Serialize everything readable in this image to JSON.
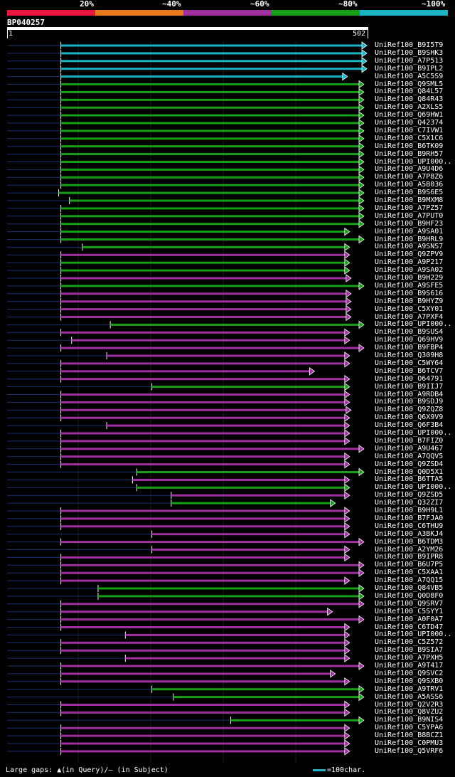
{
  "legend": {
    "labels": [
      "20%",
      "~40%",
      "~60%",
      "~80%",
      "~100%"
    ],
    "colors": [
      "#e8173c",
      "#e87a1c",
      "#a02fa0",
      "#16a016",
      "#19b5c4"
    ]
  },
  "query": {
    "id": "BP040257",
    "start_label": "1",
    "end_label": "502",
    "length": 502
  },
  "colors": {
    "cyan": "#19b5c4",
    "green": "#16a016",
    "purple": "#a02fa0",
    "gap": "#1a2f70",
    "background": "#000000"
  },
  "hits": [
    {
      "acc": "UniRef100_B9I5T9",
      "color": "cyan",
      "start": 75,
      "end": 502
    },
    {
      "acc": "UniRef100_B9SHK3",
      "color": "cyan",
      "start": 75,
      "end": 502
    },
    {
      "acc": "UniRef100_A7P513",
      "color": "cyan",
      "start": 75,
      "end": 502
    },
    {
      "acc": "UniRef100_B9IPL2",
      "color": "cyan",
      "start": 75,
      "end": 502
    },
    {
      "acc": "UniRef100_A5C5S9",
      "color": "cyan",
      "start": 75,
      "end": 475
    },
    {
      "acc": "UniRef100_Q9SML5",
      "color": "green",
      "start": 75,
      "end": 498
    },
    {
      "acc": "UniRef100_Q84L57",
      "color": "green",
      "start": 75,
      "end": 498
    },
    {
      "acc": "UniRef100_Q84R43",
      "color": "green",
      "start": 75,
      "end": 498
    },
    {
      "acc": "UniRef100_A2XLS5",
      "color": "green",
      "start": 75,
      "end": 498
    },
    {
      "acc": "UniRef100_Q69HW1",
      "color": "green",
      "start": 75,
      "end": 498
    },
    {
      "acc": "UniRef100_Q42374",
      "color": "green",
      "start": 75,
      "end": 498
    },
    {
      "acc": "UniRef100_C7IVW1",
      "color": "green",
      "start": 75,
      "end": 498
    },
    {
      "acc": "UniRef100_C5X1C6",
      "color": "green",
      "start": 75,
      "end": 498
    },
    {
      "acc": "UniRef100_B6TK09",
      "color": "green",
      "start": 75,
      "end": 498
    },
    {
      "acc": "UniRef100_B9RH57",
      "color": "green",
      "start": 75,
      "end": 498
    },
    {
      "acc": "UniRef100_UPI000..",
      "color": "green",
      "start": 75,
      "end": 498
    },
    {
      "acc": "UniRef100_A9U4D6",
      "color": "green",
      "start": 75,
      "end": 498
    },
    {
      "acc": "UniRef100_A7P8Z6",
      "color": "green",
      "start": 75,
      "end": 498
    },
    {
      "acc": "UniRef100_A5B036",
      "color": "green",
      "start": 75,
      "end": 498
    },
    {
      "acc": "UniRef100_B9S6E5",
      "color": "green",
      "start": 72,
      "end": 498
    },
    {
      "acc": "UniRef100_B9MXM8",
      "color": "green",
      "start": 87,
      "end": 498
    },
    {
      "acc": "UniRef100_A7PZ57",
      "color": "green",
      "start": 75,
      "end": 498
    },
    {
      "acc": "UniRef100_A7PUT0",
      "color": "green",
      "start": 75,
      "end": 498
    },
    {
      "acc": "UniRef100_B9HF23",
      "color": "green",
      "start": 75,
      "end": 498
    },
    {
      "acc": "UniRef100_A9SA01",
      "color": "green",
      "start": 75,
      "end": 478
    },
    {
      "acc": "UniRef100_B9HRL9",
      "color": "green",
      "start": 75,
      "end": 498
    },
    {
      "acc": "UniRef100_A9SNS7",
      "color": "green",
      "start": 105,
      "end": 478
    },
    {
      "acc": "UniRef100_Q9ZPV9",
      "color": "purple",
      "start": 75,
      "end": 478
    },
    {
      "acc": "UniRef100_A9P217",
      "color": "green",
      "start": 75,
      "end": 478
    },
    {
      "acc": "UniRef100_A9SA02",
      "color": "green",
      "start": 75,
      "end": 478
    },
    {
      "acc": "UniRef100_B9H229",
      "color": "purple",
      "start": 75,
      "end": 480
    },
    {
      "acc": "UniRef100_A9SFE5",
      "color": "green",
      "start": 75,
      "end": 498
    },
    {
      "acc": "UniRef100_B9S616",
      "color": "purple",
      "start": 75,
      "end": 480
    },
    {
      "acc": "UniRef100_B9HYZ9",
      "color": "purple",
      "start": 75,
      "end": 480
    },
    {
      "acc": "UniRef100_C5XY01",
      "color": "purple",
      "start": 75,
      "end": 480
    },
    {
      "acc": "UniRef100_A7PXF4",
      "color": "purple",
      "start": 75,
      "end": 480
    },
    {
      "acc": "UniRef100_UPI000..",
      "color": "green",
      "start": 144,
      "end": 498
    },
    {
      "acc": "UniRef100_B9SUS4",
      "color": "purple",
      "start": 75,
      "end": 478
    },
    {
      "acc": "UniRef100_Q69HV9",
      "color": "purple",
      "start": 90,
      "end": 478
    },
    {
      "acc": "UniRef100_B9FBP4",
      "color": "purple",
      "start": 75,
      "end": 498
    },
    {
      "acc": "UniRef100_Q309H8",
      "color": "purple",
      "start": 139,
      "end": 478
    },
    {
      "acc": "UniRef100_C5WY64",
      "color": "purple",
      "start": 75,
      "end": 478
    },
    {
      "acc": "UniRef100_B6TCV7",
      "color": "purple",
      "start": 75,
      "end": 429
    },
    {
      "acc": "UniRef100_O64791",
      "color": "purple",
      "start": 75,
      "end": 478
    },
    {
      "acc": "UniRef100_B9IIJ7",
      "color": "green",
      "start": 202,
      "end": 478
    },
    {
      "acc": "UniRef100_A9RDB4",
      "color": "purple",
      "start": 75,
      "end": 478
    },
    {
      "acc": "UniRef100_B9SDJ9",
      "color": "purple",
      "start": 75,
      "end": 478
    },
    {
      "acc": "UniRef100_Q9ZQZ8",
      "color": "purple",
      "start": 75,
      "end": 480
    },
    {
      "acc": "UniRef100_Q6X9V9",
      "color": "purple",
      "start": 75,
      "end": 478
    },
    {
      "acc": "UniRef100_Q6F3B4",
      "color": "purple",
      "start": 139,
      "end": 478
    },
    {
      "acc": "UniRef100_UPI000..",
      "color": "purple",
      "start": 75,
      "end": 478
    },
    {
      "acc": "UniRef100_B7FIZ0",
      "color": "purple",
      "start": 75,
      "end": 478
    },
    {
      "acc": "UniRef100_A9U467",
      "color": "purple",
      "start": 75,
      "end": 498
    },
    {
      "acc": "UniRef100_A7QQV5",
      "color": "purple",
      "start": 75,
      "end": 478
    },
    {
      "acc": "UniRef100_Q9ZSD4",
      "color": "purple",
      "start": 75,
      "end": 478
    },
    {
      "acc": "UniRef100_Q0D5X1",
      "color": "green",
      "start": 181,
      "end": 498
    },
    {
      "acc": "UniRef100_B6TTA5",
      "color": "purple",
      "start": 175,
      "end": 478
    },
    {
      "acc": "UniRef100_UPI000..",
      "color": "green",
      "start": 181,
      "end": 478
    },
    {
      "acc": "UniRef100_Q9ZSD5",
      "color": "purple",
      "start": 229,
      "end": 478
    },
    {
      "acc": "UniRef100_Q32ZI7",
      "color": "green",
      "start": 229,
      "end": 458
    },
    {
      "acc": "UniRef100_B9H9L1",
      "color": "purple",
      "start": 75,
      "end": 478
    },
    {
      "acc": "UniRef100_B7FJA0",
      "color": "purple",
      "start": 75,
      "end": 478
    },
    {
      "acc": "UniRef100_C6THU9",
      "color": "purple",
      "start": 75,
      "end": 478
    },
    {
      "acc": "UniRef100_A3BKJ4",
      "color": "purple",
      "start": 202,
      "end": 478
    },
    {
      "acc": "UniRef100_B6TDM3",
      "color": "purple",
      "start": 75,
      "end": 498
    },
    {
      "acc": "UniRef100_A2YM26",
      "color": "purple",
      "start": 202,
      "end": 478
    },
    {
      "acc": "UniRef100_B9IPR8",
      "color": "purple",
      "start": 75,
      "end": 478
    },
    {
      "acc": "UniRef100_B6U7P5",
      "color": "purple",
      "start": 75,
      "end": 498
    },
    {
      "acc": "UniRef100_C5XAA1",
      "color": "purple",
      "start": 75,
      "end": 498
    },
    {
      "acc": "UniRef100_A7QQ15",
      "color": "purple",
      "start": 75,
      "end": 478
    },
    {
      "acc": "UniRef100_Q84VB5",
      "color": "green",
      "start": 127,
      "end": 498
    },
    {
      "acc": "UniRef100_Q0D8F0",
      "color": "green",
      "start": 127,
      "end": 498
    },
    {
      "acc": "UniRef100_Q9SRV7",
      "color": "purple",
      "start": 75,
      "end": 498
    },
    {
      "acc": "UniRef100_C5SYY1",
      "color": "purple",
      "start": 75,
      "end": 454
    },
    {
      "acc": "UniRef100_A0F0A7",
      "color": "purple",
      "start": 75,
      "end": 498
    },
    {
      "acc": "UniRef100_C6TD47",
      "color": "purple",
      "start": 75,
      "end": 478
    },
    {
      "acc": "UniRef100_UPI000..",
      "color": "purple",
      "start": 165,
      "end": 478
    },
    {
      "acc": "UniRef100_C5Z572",
      "color": "purple",
      "start": 75,
      "end": 478
    },
    {
      "acc": "UniRef100_B9SIA7",
      "color": "purple",
      "start": 75,
      "end": 478
    },
    {
      "acc": "UniRef100_A7PXH5",
      "color": "purple",
      "start": 165,
      "end": 478
    },
    {
      "acc": "UniRef100_A9T417",
      "color": "purple",
      "start": 75,
      "end": 498
    },
    {
      "acc": "UniRef100_Q9SVC2",
      "color": "purple",
      "start": 75,
      "end": 458
    },
    {
      "acc": "UniRef100_Q9SXB0",
      "color": "purple",
      "start": 75,
      "end": 478
    },
    {
      "acc": "UniRef100_A9TRV1",
      "color": "green",
      "start": 202,
      "end": 498
    },
    {
      "acc": "UniRef100_A5ASS6",
      "color": "green",
      "start": 232,
      "end": 498
    },
    {
      "acc": "UniRef100_Q2V2R3",
      "color": "purple",
      "start": 75,
      "end": 478
    },
    {
      "acc": "UniRef100_Q8VZU2",
      "color": "purple",
      "start": 75,
      "end": 478
    },
    {
      "acc": "UniRef100_B9NIS4",
      "color": "green",
      "start": 312,
      "end": 498
    },
    {
      "acc": "UniRef100_C5YPA6",
      "color": "purple",
      "start": 75,
      "end": 478
    },
    {
      "acc": "UniRef100_B8BCZ1",
      "color": "purple",
      "start": 75,
      "end": 478
    },
    {
      "acc": "UniRef100_C0PMU3",
      "color": "purple",
      "start": 75,
      "end": 478
    },
    {
      "acc": "UniRef100_Q5VRF6",
      "color": "purple",
      "start": 75,
      "end": 478
    }
  ],
  "footer": {
    "left_text": "Large gaps: ▲(in Query)/– (in Subject)",
    "scale_text": "=100char."
  }
}
